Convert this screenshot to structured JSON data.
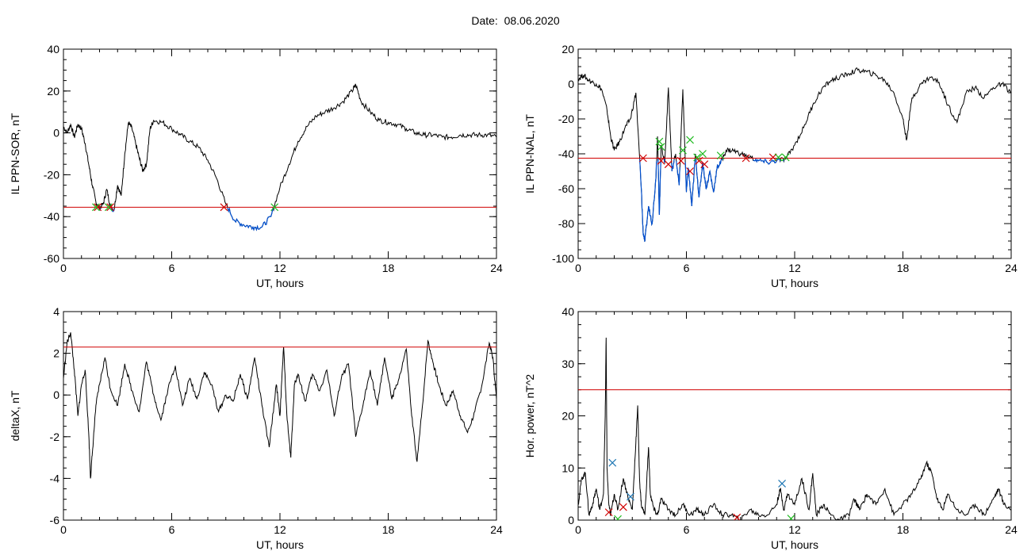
{
  "date_label": "Date:  08.06.2020",
  "colors": {
    "axis": "#000000",
    "trace": "#000000",
    "below_threshold": "#0050d0",
    "threshold": "#d00000",
    "onset_marker": "#d00000",
    "end_marker": "#22bb22",
    "peak_marker": "#1f77b4"
  },
  "chart_data": [
    {
      "id": "sor",
      "type": "line",
      "xlabel": "UT, hours",
      "ylabel": "IL PPN-SOR, nT",
      "xlim": [
        0,
        24
      ],
      "ylim": [
        -60,
        40
      ],
      "xticks": [
        0,
        6,
        12,
        18,
        24
      ],
      "yticks": [
        -60,
        -40,
        -20,
        0,
        20,
        40
      ],
      "threshold": -35.5,
      "series": [
        {
          "x": [
            0,
            0.2,
            0.4,
            0.6,
            0.8,
            1.0,
            1.2,
            1.4,
            1.6,
            1.8,
            2.0,
            2.2,
            2.4,
            2.6,
            2.8,
            3.0,
            3.2,
            3.4,
            3.6,
            3.8,
            4.0,
            4.2,
            4.4,
            4.6,
            4.8,
            5.0,
            5.5,
            6.0,
            6.5,
            7.0,
            7.5,
            8.0,
            8.5,
            9.0,
            9.5,
            10.0,
            10.5,
            11.0,
            11.5,
            12.0,
            12.5,
            13.0,
            13.5,
            14.0,
            14.5,
            15.0,
            15.5,
            16.0,
            16.2,
            16.5,
            17.0,
            17.5,
            18.0,
            18.5,
            19.0,
            19.5,
            20.0,
            20.5,
            21.0,
            21.5,
            22.0,
            22.5,
            23.0,
            23.5,
            24.0
          ],
          "y": [
            3,
            0,
            4,
            -2,
            4,
            2,
            -5,
            -15,
            -25,
            -33,
            -36,
            -34,
            -27,
            -35,
            -37,
            -25,
            -30,
            -10,
            5,
            2,
            -5,
            -12,
            -18,
            -15,
            2,
            6,
            5,
            2,
            -1,
            -4,
            -7,
            -13,
            -22,
            -34,
            -42,
            -44,
            -45,
            -45,
            -40,
            -26,
            -15,
            -4,
            3,
            8,
            10,
            12,
            15,
            20,
            23,
            15,
            10,
            6,
            5,
            4,
            2,
            0,
            -1,
            -1,
            -2,
            -2,
            -1,
            -1,
            -1,
            -1,
            -2
          ]
        }
      ],
      "markers": [
        {
          "x": 1.9,
          "y": -35.5,
          "kind": "onset"
        },
        {
          "x": 2.6,
          "y": -35.5,
          "kind": "onset"
        },
        {
          "x": 8.9,
          "y": -35.5,
          "kind": "onset"
        },
        {
          "x": 1.8,
          "y": -35.5,
          "kind": "end"
        },
        {
          "x": 2.5,
          "y": -35.5,
          "kind": "end"
        },
        {
          "x": 11.7,
          "y": -35.5,
          "kind": "end"
        }
      ]
    },
    {
      "id": "nal",
      "type": "line",
      "xlabel": "UT, hours",
      "ylabel": "IL PPN-NAL, nT",
      "xlim": [
        0,
        24
      ],
      "ylim": [
        -100,
        20
      ],
      "xticks": [
        0,
        6,
        12,
        18,
        24
      ],
      "yticks": [
        -100,
        -80,
        -60,
        -40,
        -20,
        0,
        20
      ],
      "threshold": -42.5,
      "series": [
        {
          "x": [
            0,
            0.3,
            0.6,
            1.0,
            1.3,
            1.6,
            1.8,
            2.0,
            2.3,
            2.6,
            2.9,
            3.2,
            3.5,
            3.6,
            3.7,
            3.9,
            4.1,
            4.3,
            4.4,
            4.5,
            4.6,
            4.8,
            5.0,
            5.2,
            5.4,
            5.6,
            5.8,
            6.0,
            6.1,
            6.3,
            6.5,
            6.7,
            6.9,
            7.1,
            7.3,
            7.5,
            7.7,
            7.9,
            8.2,
            8.6,
            9.0,
            9.5,
            10.0,
            10.5,
            11.0,
            11.5,
            12.0,
            12.5,
            13.0,
            13.5,
            14.0,
            14.5,
            15.0,
            15.5,
            16.0,
            16.5,
            17.0,
            17.5,
            18.0,
            18.2,
            18.5,
            19.0,
            19.5,
            20.0,
            20.5,
            21.0,
            21.5,
            22.0,
            22.5,
            23.0,
            23.5,
            24.0
          ],
          "y": [
            3,
            5,
            2,
            0,
            -3,
            -15,
            -30,
            -38,
            -33,
            -25,
            -20,
            -5,
            -60,
            -85,
            -90,
            -70,
            -80,
            -55,
            -30,
            -75,
            -35,
            -45,
            -2,
            -50,
            -40,
            -58,
            -3,
            -62,
            -48,
            -70,
            -40,
            -65,
            -45,
            -60,
            -50,
            -62,
            -48,
            -45,
            -38,
            -38,
            -40,
            -42,
            -44,
            -45,
            -44,
            -43,
            -35,
            -25,
            -12,
            -3,
            2,
            4,
            6,
            8,
            7,
            5,
            2,
            -5,
            -20,
            -32,
            -8,
            0,
            4,
            1,
            -12,
            -22,
            -5,
            -2,
            -8,
            -2,
            0,
            -5
          ]
        }
      ],
      "markers": [
        {
          "x": 3.6,
          "y": -42.5,
          "kind": "onset"
        },
        {
          "x": 4.6,
          "y": -44,
          "kind": "onset"
        },
        {
          "x": 5.0,
          "y": -46,
          "kind": "onset"
        },
        {
          "x": 5.7,
          "y": -44,
          "kind": "onset"
        },
        {
          "x": 6.2,
          "y": -50,
          "kind": "onset"
        },
        {
          "x": 6.7,
          "y": -44,
          "kind": "onset"
        },
        {
          "x": 7.0,
          "y": -46,
          "kind": "onset"
        },
        {
          "x": 9.3,
          "y": -42.5,
          "kind": "onset"
        },
        {
          "x": 10.8,
          "y": -42,
          "kind": "onset"
        },
        {
          "x": 4.5,
          "y": -33,
          "kind": "end"
        },
        {
          "x": 4.6,
          "y": -36,
          "kind": "end"
        },
        {
          "x": 5.8,
          "y": -38,
          "kind": "end"
        },
        {
          "x": 6.2,
          "y": -32,
          "kind": "end"
        },
        {
          "x": 6.6,
          "y": -42,
          "kind": "end"
        },
        {
          "x": 6.9,
          "y": -40,
          "kind": "end"
        },
        {
          "x": 7.9,
          "y": -41,
          "kind": "end"
        },
        {
          "x": 11.1,
          "y": -42,
          "kind": "end"
        },
        {
          "x": 11.5,
          "y": -42,
          "kind": "end"
        }
      ]
    },
    {
      "id": "deltax",
      "type": "line",
      "xlabel": "UT, hours",
      "ylabel": "deltaX, nT",
      "xlim": [
        0,
        24
      ],
      "ylim": [
        -6,
        4
      ],
      "xticks": [
        0,
        6,
        12,
        18,
        24
      ],
      "yticks": [
        -6,
        -4,
        -2,
        0,
        2,
        4
      ],
      "threshold": 2.3,
      "series": [
        {
          "x": [
            0,
            0.2,
            0.4,
            0.6,
            0.8,
            1.0,
            1.2,
            1.4,
            1.5,
            1.6,
            1.8,
            2.0,
            2.3,
            2.6,
            3.0,
            3.4,
            3.8,
            4.2,
            4.6,
            5.0,
            5.4,
            5.8,
            6.2,
            6.6,
            7.0,
            7.4,
            7.8,
            8.2,
            8.6,
            9.0,
            9.4,
            9.8,
            10.2,
            10.6,
            11.0,
            11.4,
            11.8,
            12.0,
            12.2,
            12.4,
            12.6,
            12.8,
            13.0,
            13.4,
            13.8,
            14.2,
            14.6,
            15.0,
            15.4,
            15.8,
            16.2,
            16.6,
            17.0,
            17.4,
            17.8,
            18.2,
            18.6,
            19.0,
            19.3,
            19.6,
            19.9,
            20.2,
            20.5,
            20.8,
            21.2,
            21.6,
            22.0,
            22.4,
            22.8,
            23.2,
            23.6,
            23.8,
            24.0
          ],
          "y": [
            0.8,
            2.5,
            3.0,
            1.2,
            -1.0,
            0.5,
            1.2,
            -1.8,
            -4.0,
            -2.8,
            -0.5,
            0.5,
            1.8,
            0.3,
            -0.5,
            1.5,
            0.2,
            -0.8,
            1.6,
            0.0,
            -1.2,
            0.3,
            1.4,
            -0.5,
            0.8,
            -0.2,
            1.1,
            0.5,
            -0.8,
            0.0,
            -0.3,
            1.0,
            -0.2,
            1.8,
            -0.5,
            -2.5,
            0.5,
            -1.0,
            2.3,
            -1.2,
            -3.0,
            0.5,
            1.0,
            -0.3,
            1.0,
            0.2,
            1.2,
            -1.0,
            0.8,
            1.5,
            -2.0,
            -0.5,
            1.2,
            -0.5,
            1.8,
            -0.2,
            0.8,
            2.2,
            -1.0,
            -3.2,
            -0.5,
            2.6,
            1.5,
            0.5,
            -0.5,
            0.2,
            -1.0,
            -1.8,
            -0.8,
            0.5,
            2.5,
            1.8,
            -0.2
          ]
        }
      ],
      "markers": []
    },
    {
      "id": "power",
      "type": "line",
      "xlabel": "UT, hours",
      "ylabel": "Hor. power, nT^2",
      "xlim": [
        0,
        24
      ],
      "ylim": [
        0,
        40
      ],
      "xticks": [
        0,
        6,
        12,
        18,
        24
      ],
      "yticks": [
        0,
        10,
        20,
        30,
        40
      ],
      "threshold": 25,
      "series": [
        {
          "x": [
            0,
            0.2,
            0.4,
            0.6,
            0.8,
            1.0,
            1.2,
            1.4,
            1.5,
            1.55,
            1.6,
            1.7,
            1.8,
            2.0,
            2.2,
            2.5,
            2.8,
            3.0,
            3.2,
            3.3,
            3.4,
            3.5,
            3.7,
            3.9,
            4.0,
            4.2,
            4.4,
            4.6,
            5.0,
            5.4,
            5.8,
            6.2,
            6.6,
            7.0,
            7.5,
            8.0,
            8.5,
            9.0,
            9.5,
            10.0,
            10.5,
            11.0,
            11.2,
            11.4,
            11.6,
            12.0,
            12.4,
            12.8,
            13.0,
            13.2,
            13.6,
            14.0,
            14.5,
            15.0,
            15.3,
            15.6,
            16.0,
            16.5,
            17.0,
            17.5,
            18.0,
            18.5,
            19.0,
            19.3,
            19.6,
            19.9,
            20.2,
            20.5,
            21.0,
            21.5,
            22.0,
            22.5,
            23.0,
            23.3,
            23.6,
            24.0
          ],
          "y": [
            3,
            8,
            9,
            1,
            3,
            6,
            2,
            5,
            20,
            35,
            10,
            3,
            1,
            5,
            2,
            8,
            4,
            2,
            15,
            22,
            8,
            3,
            1,
            14,
            5,
            2,
            1,
            4,
            2,
            1,
            3,
            1,
            2,
            1,
            3,
            1,
            1,
            0,
            2,
            1,
            1,
            3,
            6,
            2,
            5,
            3,
            8,
            2,
            9,
            1,
            3,
            1,
            0,
            1,
            4,
            2,
            5,
            3,
            6,
            1,
            3,
            5,
            8,
            11,
            9,
            4,
            2,
            5,
            2,
            1,
            3,
            1,
            4,
            6,
            3,
            2
          ]
        }
      ],
      "markers": [
        {
          "x": 1.9,
          "y": 11,
          "kind": "peak"
        },
        {
          "x": 2.9,
          "y": 4.5,
          "kind": "peak"
        },
        {
          "x": 11.3,
          "y": 7,
          "kind": "peak"
        },
        {
          "x": 1.7,
          "y": 1.5,
          "kind": "onset"
        },
        {
          "x": 2.5,
          "y": 2.5,
          "kind": "onset"
        },
        {
          "x": 8.8,
          "y": 0.5,
          "kind": "onset"
        },
        {
          "x": 2.2,
          "y": 0.2,
          "kind": "end"
        },
        {
          "x": 11.8,
          "y": 0.3,
          "kind": "end"
        }
      ]
    }
  ]
}
